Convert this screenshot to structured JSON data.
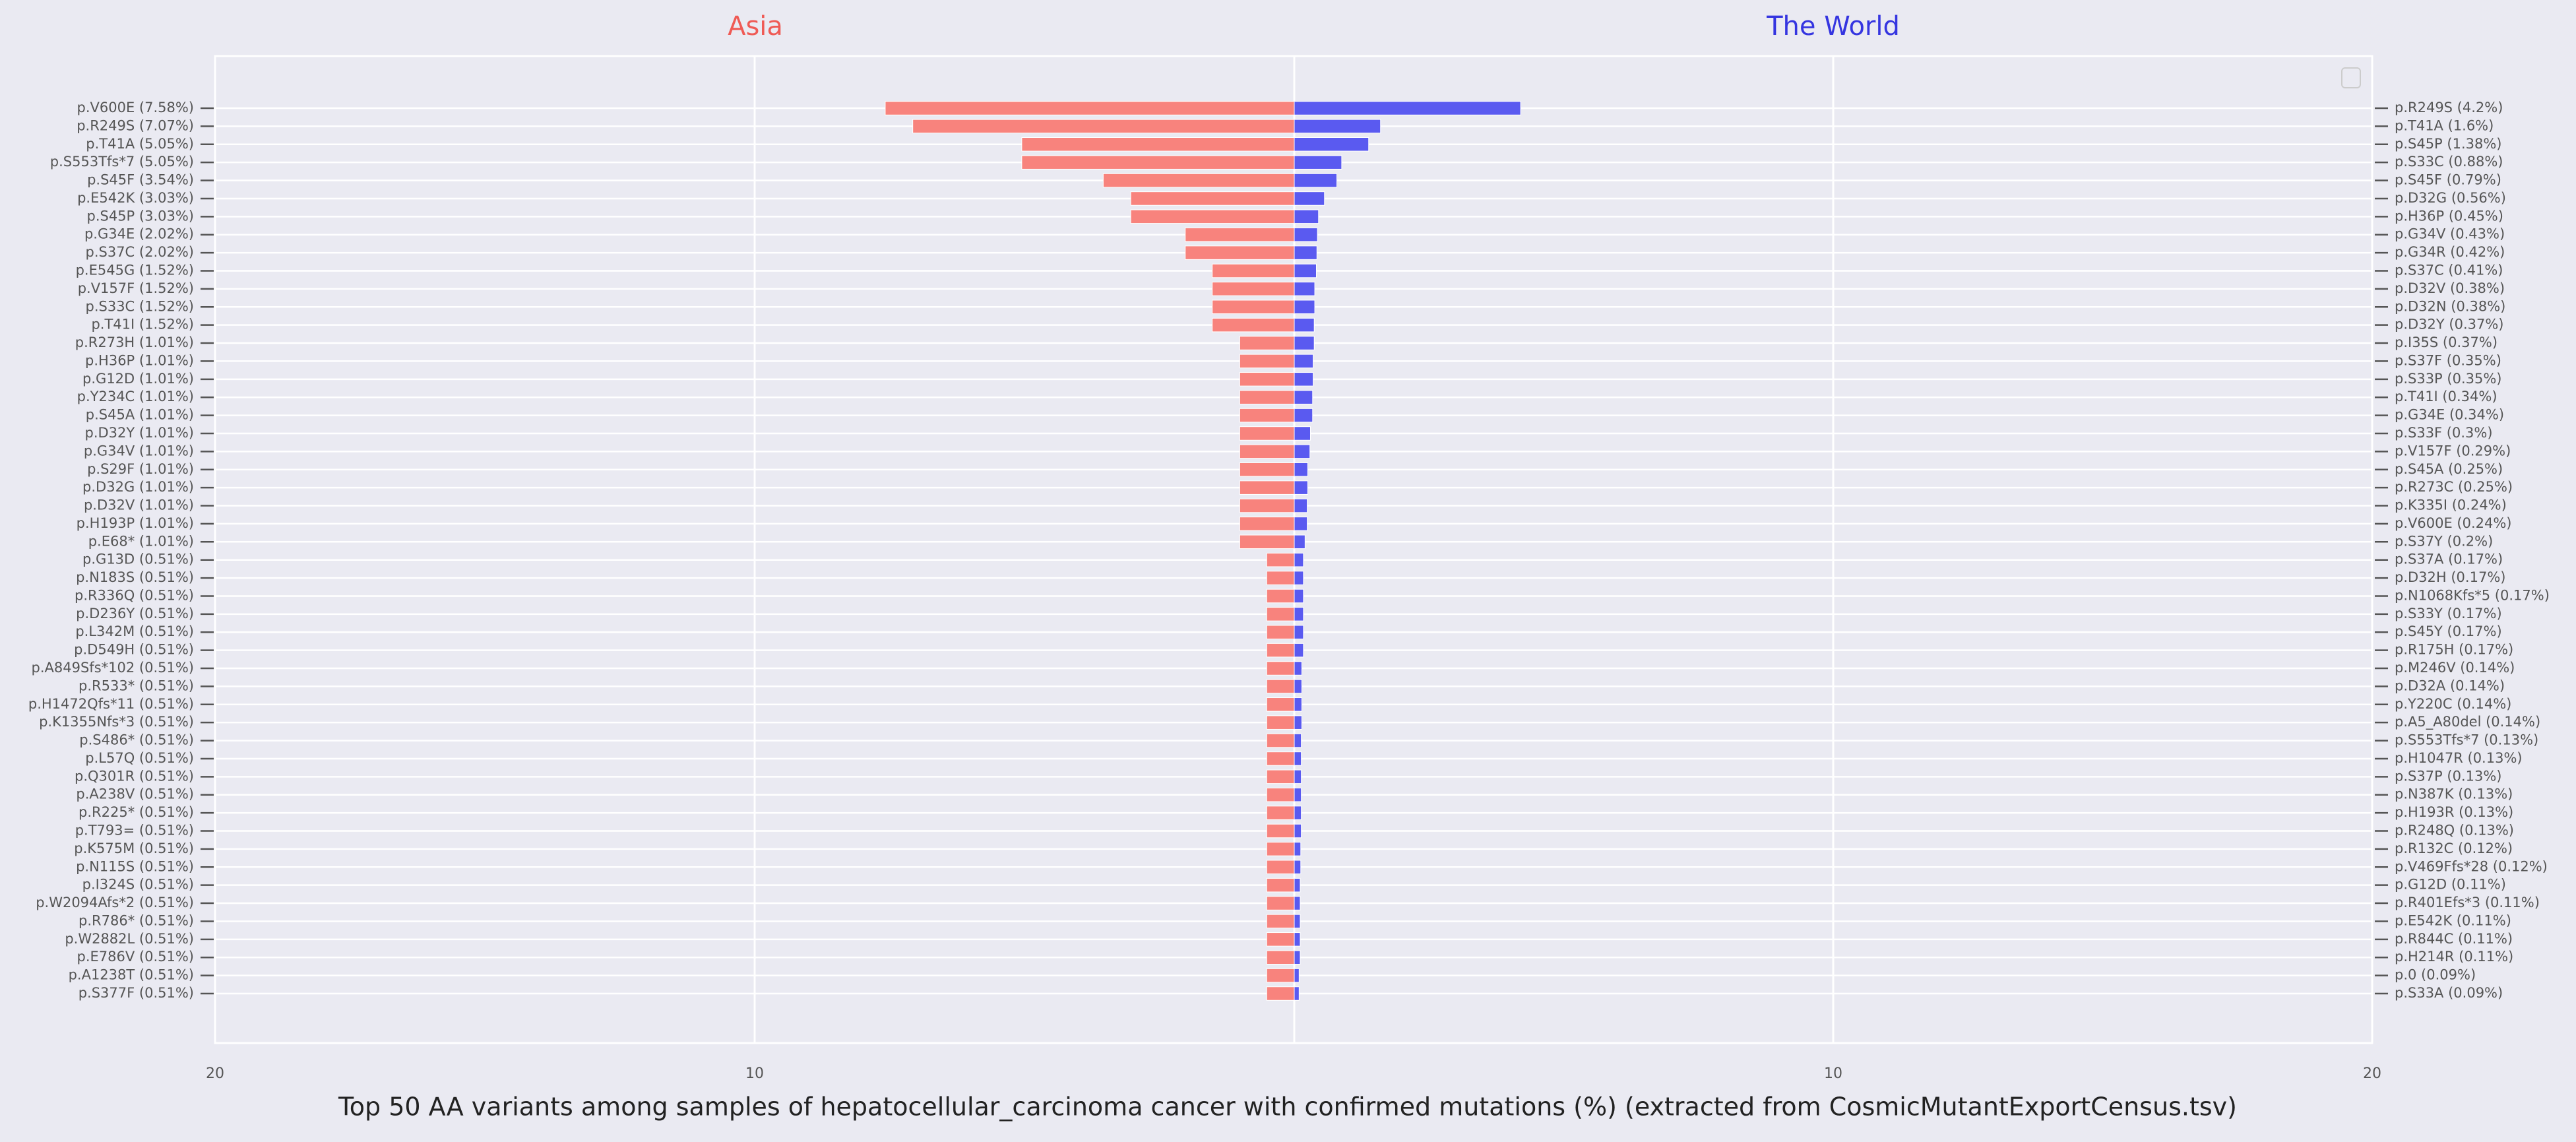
{
  "chart_data": {
    "type": "butterfly",
    "title": "Top 50 AA variants among samples of hepatocellular_carcinoma cancer with confirmed mutations (%) (extracted from CosmicMutantExportCensus.tsv)",
    "xlim": [
      0,
      20
    ],
    "xticks": [
      10,
      20
    ],
    "grid": true,
    "series": [
      {
        "name": "Asia",
        "side": "left",
        "color": "#f8837d",
        "title_color": "#ef5a55",
        "categories": [
          "p.V600E (7.58%)",
          "p.R249S (7.07%)",
          "p.T41A (5.05%)",
          "p.S553Tfs*7 (5.05%)",
          "p.S45F (3.54%)",
          "p.E542K (3.03%)",
          "p.S45P (3.03%)",
          "p.G34E (2.02%)",
          "p.S37C (2.02%)",
          "p.E545G (1.52%)",
          "p.V157F (1.52%)",
          "p.S33C (1.52%)",
          "p.T41I (1.52%)",
          "p.R273H (1.01%)",
          "p.H36P (1.01%)",
          "p.G12D (1.01%)",
          "p.Y234C (1.01%)",
          "p.S45A (1.01%)",
          "p.D32Y (1.01%)",
          "p.G34V (1.01%)",
          "p.S29F (1.01%)",
          "p.D32G (1.01%)",
          "p.D32V (1.01%)",
          "p.H193P (1.01%)",
          "p.E68* (1.01%)",
          "p.G13D (0.51%)",
          "p.N183S (0.51%)",
          "p.R336Q (0.51%)",
          "p.D236Y (0.51%)",
          "p.L342M (0.51%)",
          "p.D549H (0.51%)",
          "p.A849Sfs*102 (0.51%)",
          "p.R533* (0.51%)",
          "p.H1472Qfs*11 (0.51%)",
          "p.K1355Nfs*3 (0.51%)",
          "p.S486* (0.51%)",
          "p.L57Q (0.51%)",
          "p.Q301R (0.51%)",
          "p.A238V (0.51%)",
          "p.R225* (0.51%)",
          "p.T793= (0.51%)",
          "p.K575M (0.51%)",
          "p.N115S (0.51%)",
          "p.I324S (0.51%)",
          "p.W2094Afs*2 (0.51%)",
          "p.R786* (0.51%)",
          "p.W2882L (0.51%)",
          "p.E786V (0.51%)",
          "p.A1238T (0.51%)",
          "p.S377F (0.51%)"
        ],
        "values": [
          7.58,
          7.07,
          5.05,
          5.05,
          3.54,
          3.03,
          3.03,
          2.02,
          2.02,
          1.52,
          1.52,
          1.52,
          1.52,
          1.01,
          1.01,
          1.01,
          1.01,
          1.01,
          1.01,
          1.01,
          1.01,
          1.01,
          1.01,
          1.01,
          1.01,
          0.51,
          0.51,
          0.51,
          0.51,
          0.51,
          0.51,
          0.51,
          0.51,
          0.51,
          0.51,
          0.51,
          0.51,
          0.51,
          0.51,
          0.51,
          0.51,
          0.51,
          0.51,
          0.51,
          0.51,
          0.51,
          0.51,
          0.51,
          0.51,
          0.51
        ]
      },
      {
        "name": "The World",
        "side": "right",
        "color": "#5a5af0",
        "title_color": "#3535e0",
        "categories": [
          "p.R249S (4.2%)",
          "p.T41A (1.6%)",
          "p.S45P (1.38%)",
          "p.S33C (0.88%)",
          "p.S45F (0.79%)",
          "p.D32G (0.56%)",
          "p.H36P (0.45%)",
          "p.G34V (0.43%)",
          "p.G34R (0.42%)",
          "p.S37C (0.41%)",
          "p.D32V (0.38%)",
          "p.D32N (0.38%)",
          "p.D32Y (0.37%)",
          "p.I35S (0.37%)",
          "p.S37F (0.35%)",
          "p.S33P (0.35%)",
          "p.T41I (0.34%)",
          "p.G34E (0.34%)",
          "p.S33F (0.3%)",
          "p.V157F (0.29%)",
          "p.S45A (0.25%)",
          "p.R273C (0.25%)",
          "p.K335I (0.24%)",
          "p.V600E (0.24%)",
          "p.S37Y (0.2%)",
          "p.S37A (0.17%)",
          "p.D32H (0.17%)",
          "p.N1068Kfs*5 (0.17%)",
          "p.S33Y (0.17%)",
          "p.S45Y (0.17%)",
          "p.R175H (0.17%)",
          "p.M246V (0.14%)",
          "p.D32A (0.14%)",
          "p.Y220C (0.14%)",
          "p.A5_A80del (0.14%)",
          "p.S553Tfs*7 (0.13%)",
          "p.H1047R (0.13%)",
          "p.S37P (0.13%)",
          "p.N387K (0.13%)",
          "p.H193R (0.13%)",
          "p.R248Q (0.13%)",
          "p.R132C (0.12%)",
          "p.V469Ffs*28 (0.12%)",
          "p.G12D (0.11%)",
          "p.R401Efs*3 (0.11%)",
          "p.E542K (0.11%)",
          "p.R844C (0.11%)",
          "p.H214R (0.11%)",
          "p.0 (0.09%)",
          "p.S33A (0.09%)"
        ],
        "values": [
          4.2,
          1.6,
          1.38,
          0.88,
          0.79,
          0.56,
          0.45,
          0.43,
          0.42,
          0.41,
          0.38,
          0.38,
          0.37,
          0.37,
          0.35,
          0.35,
          0.34,
          0.34,
          0.3,
          0.29,
          0.25,
          0.25,
          0.24,
          0.24,
          0.2,
          0.17,
          0.17,
          0.17,
          0.17,
          0.17,
          0.17,
          0.14,
          0.14,
          0.14,
          0.14,
          0.13,
          0.13,
          0.13,
          0.13,
          0.13,
          0.13,
          0.12,
          0.12,
          0.11,
          0.11,
          0.11,
          0.11,
          0.11,
          0.09,
          0.09
        ]
      }
    ]
  }
}
